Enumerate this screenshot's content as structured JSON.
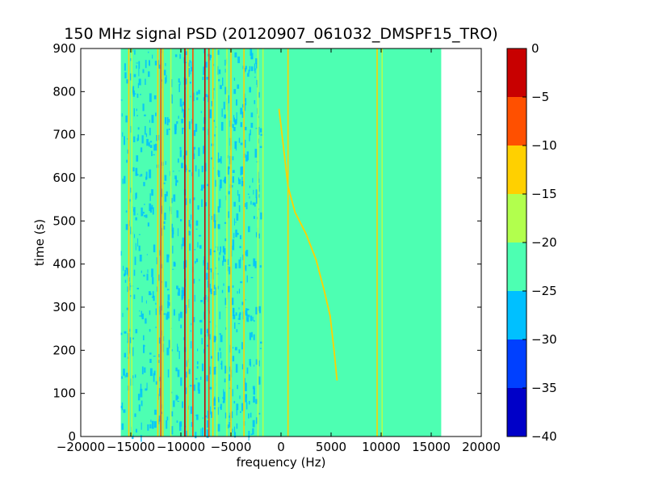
{
  "chart_data": {
    "type": "heatmap",
    "title": "150 MHz signal PSD (20120907_061032_DMSPF15_TRO)",
    "xlabel": "frequency (Hz)",
    "ylabel": "time (s)",
    "xlim": [
      -20000,
      20000
    ],
    "ylim": [
      0,
      900
    ],
    "x_ticks": [
      -20000,
      -15000,
      -10000,
      -5000,
      0,
      5000,
      10000,
      15000,
      20000
    ],
    "y_ticks": [
      0,
      100,
      200,
      300,
      400,
      500,
      600,
      700,
      800,
      900
    ],
    "data_extent": {
      "freq_min": -16000,
      "freq_max": 16000,
      "time_min": 0,
      "time_max": 900
    },
    "background_level": -22.5,
    "colorbar": {
      "min": -40,
      "max": 0,
      "ticks": [
        0,
        -5,
        -10,
        -15,
        -20,
        -25,
        -30,
        -35,
        -40
      ],
      "levels": [
        {
          "from": -40,
          "to": -35,
          "color": "#0000c8"
        },
        {
          "from": -35,
          "to": -30,
          "color": "#0040ff"
        },
        {
          "from": -30,
          "to": -25,
          "color": "#00c0ff"
        },
        {
          "from": -25,
          "to": -20,
          "color": "#4dffb2"
        },
        {
          "from": -20,
          "to": -15,
          "color": "#b2ff4d"
        },
        {
          "from": -15,
          "to": -10,
          "color": "#ffd000"
        },
        {
          "from": -10,
          "to": -5,
          "color": "#ff5000"
        },
        {
          "from": -5,
          "to": 0,
          "color": "#c80000"
        }
      ]
    },
    "noisy_band": {
      "from": -16000,
      "to": -2000,
      "level": -27.5
    },
    "vertical_lines": [
      {
        "f": -15200,
        "level": -12.5
      },
      {
        "f": -14900,
        "level": -17.5
      },
      {
        "f": -12300,
        "level": -12.5
      },
      {
        "f": -12000,
        "level": -7.5
      },
      {
        "f": -11800,
        "level": -12.5
      },
      {
        "f": -11000,
        "level": -17.5
      },
      {
        "f": -9600,
        "level": -2.5
      },
      {
        "f": -9300,
        "level": -12.5
      },
      {
        "f": -8800,
        "level": -7.5
      },
      {
        "f": -7600,
        "level": -2.5
      },
      {
        "f": -7200,
        "level": -7.5
      },
      {
        "f": -6800,
        "level": -12.5
      },
      {
        "f": -6400,
        "level": -17.5
      },
      {
        "f": -5400,
        "level": -17.5
      },
      {
        "f": -5000,
        "level": -12.5
      },
      {
        "f": -3700,
        "level": -12.5
      },
      {
        "f": -2300,
        "level": -17.5
      },
      {
        "f": -1800,
        "level": -17.5
      },
      {
        "f": 700,
        "level": -12.5
      },
      {
        "f": 9600,
        "level": -12.5
      },
      {
        "f": 10100,
        "level": -17.5
      }
    ],
    "doppler_curve": {
      "level": -12.5,
      "points": [
        [
          -200,
          760
        ],
        [
          200,
          680
        ],
        [
          700,
          580
        ],
        [
          1400,
          520
        ],
        [
          2500,
          470
        ],
        [
          3500,
          410
        ],
        [
          4300,
          340
        ],
        [
          4900,
          280
        ],
        [
          5300,
          200
        ],
        [
          5600,
          130
        ]
      ]
    }
  }
}
